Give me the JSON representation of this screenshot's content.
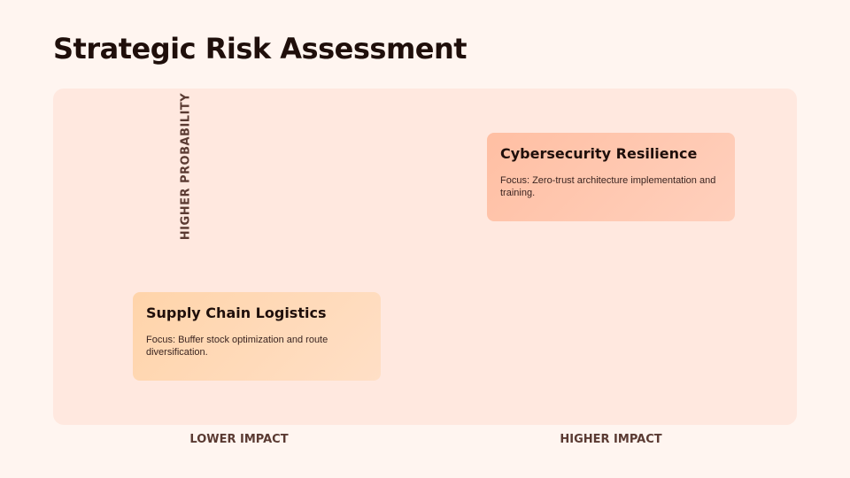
{
  "title": "Strategic Risk Assessment",
  "axes": {
    "y_label": "HIGHER PROBABILITY",
    "x_left_label": "LOWER IMPACT",
    "x_right_label": "HIGHER IMPACT"
  },
  "cards": [
    {
      "title": "Cybersecurity Resilience",
      "body": "Focus: Zero-trust architecture implementation and training.",
      "color": "#ffbfa3"
    },
    {
      "title": "Supply Chain Logistics",
      "body": "Focus: Buffer stock optimization and route diversification.",
      "color": "#ffd4aa"
    }
  ]
}
